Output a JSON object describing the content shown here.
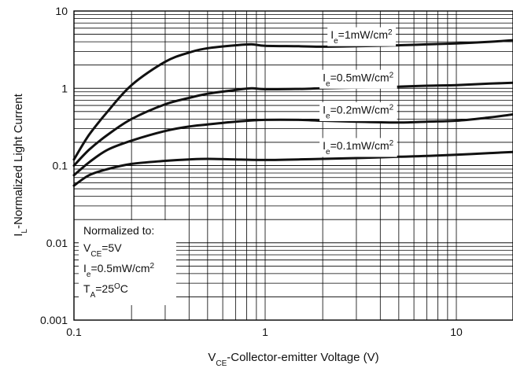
{
  "chart_data": {
    "type": "line",
    "x_scale": "log",
    "y_scale": "log",
    "xlim": [
      0.1,
      20
    ],
    "ylim": [
      0.001,
      10
    ],
    "grid": true,
    "xlabel": {
      "main": "V",
      "sub": "CE",
      "rest": "-Collector-emitter Voltage (V)"
    },
    "ylabel": {
      "main": "I",
      "sub": "L",
      "rest": "-Normalized Light Current"
    },
    "x_ticks": [
      {
        "value": 0.1,
        "label": "0.1"
      },
      {
        "value": 1,
        "label": "1"
      },
      {
        "value": 10,
        "label": "10"
      }
    ],
    "y_ticks": [
      {
        "value": 10,
        "label": "10"
      },
      {
        "value": 1,
        "label": "1"
      },
      {
        "value": 0.1,
        "label": "0.1"
      },
      {
        "value": 0.01,
        "label": "0.01"
      },
      {
        "value": 0.001,
        "label": "0.001"
      }
    ],
    "series": [
      {
        "name": {
          "pre": "I",
          "sub": "e",
          "post": "=1mW/cm",
          "sup": "2"
        },
        "x": [
          0.1,
          0.12,
          0.15,
          0.2,
          0.3,
          0.4,
          0.5,
          0.7,
          0.85,
          1.0,
          1.5,
          2,
          3,
          5,
          7,
          10,
          15,
          20
        ],
        "y": [
          0.12,
          0.25,
          0.5,
          1.1,
          2.2,
          2.9,
          3.3,
          3.6,
          3.7,
          3.55,
          3.5,
          3.45,
          3.5,
          3.6,
          3.7,
          3.8,
          4.0,
          4.2
        ]
      },
      {
        "name": {
          "pre": "I",
          "sub": "e",
          "post": "=0.5mW/cm",
          "sup": "2"
        },
        "x": [
          0.1,
          0.12,
          0.15,
          0.2,
          0.3,
          0.4,
          0.5,
          0.7,
          0.85,
          1.0,
          1.5,
          2,
          3,
          5,
          7,
          10,
          15,
          20
        ],
        "y": [
          0.1,
          0.16,
          0.25,
          0.4,
          0.62,
          0.75,
          0.85,
          0.95,
          1.0,
          0.97,
          0.98,
          1.0,
          1.02,
          1.05,
          1.08,
          1.1,
          1.15,
          1.18
        ]
      },
      {
        "name": {
          "pre": "I",
          "sub": "e",
          "post": "=0.2mW/cm",
          "sup": "2"
        },
        "x": [
          0.1,
          0.12,
          0.15,
          0.2,
          0.3,
          0.4,
          0.5,
          0.7,
          1.0,
          1.5,
          2,
          3,
          5,
          7,
          10,
          15,
          20
        ],
        "y": [
          0.075,
          0.11,
          0.16,
          0.21,
          0.28,
          0.32,
          0.34,
          0.37,
          0.39,
          0.39,
          0.38,
          0.37,
          0.36,
          0.37,
          0.38,
          0.42,
          0.46
        ]
      },
      {
        "name": {
          "pre": "I",
          "sub": "e",
          "post": "=0.1mW/cm",
          "sup": "2"
        },
        "x": [
          0.1,
          0.12,
          0.15,
          0.2,
          0.3,
          0.4,
          0.5,
          0.7,
          1.0,
          1.5,
          2,
          3,
          5,
          7,
          10,
          15,
          20
        ],
        "y": [
          0.055,
          0.075,
          0.09,
          0.105,
          0.115,
          0.12,
          0.122,
          0.12,
          0.118,
          0.12,
          0.122,
          0.125,
          0.13,
          0.133,
          0.138,
          0.145,
          0.15
        ]
      }
    ],
    "annotation": {
      "title": "Normalized to:",
      "lines": [
        {
          "pre": "V",
          "sub": "CE",
          "post": "=5V",
          "sup": ""
        },
        {
          "pre": "I",
          "sub": "e",
          "post": "=0.5mW/cm",
          "sup": "2"
        },
        {
          "pre": "T",
          "sub": "A",
          "post": "=25",
          "sup": "O",
          "tail": "C"
        }
      ]
    }
  }
}
